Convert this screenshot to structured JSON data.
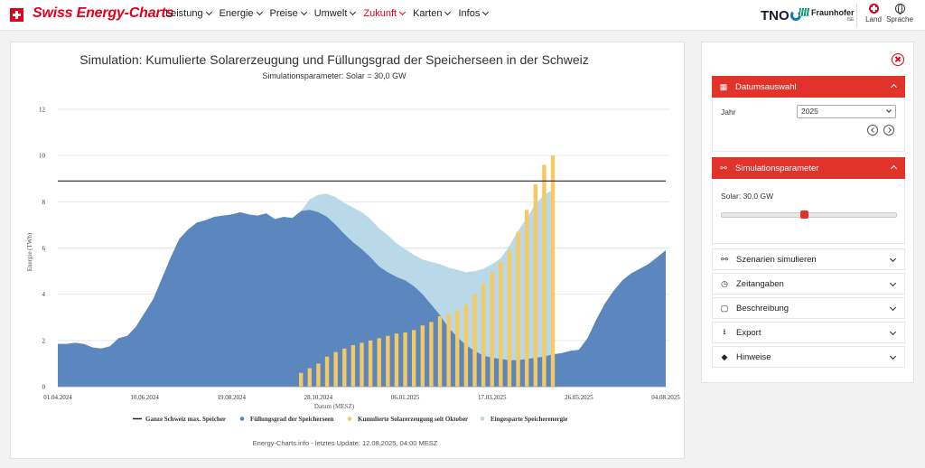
{
  "brand": {
    "name": "Swiss Energy-Charts"
  },
  "nav": {
    "items": [
      {
        "label": "Leistung",
        "active": false
      },
      {
        "label": "Energie",
        "active": false
      },
      {
        "label": "Preise",
        "active": false
      },
      {
        "label": "Umwelt",
        "active": false
      },
      {
        "label": "Zukunft",
        "active": true
      },
      {
        "label": "Karten",
        "active": false
      },
      {
        "label": "Infos",
        "active": false
      }
    ],
    "partner1": "TNO",
    "partner2": "Fraunhofer",
    "partner2_sub": "ISE",
    "land_label": "Land",
    "sprache_label": "Sprache"
  },
  "colors": {
    "accent": "#e2332a",
    "reservoir": "#5b86be",
    "solar": "#f5c963",
    "saved": "#bad9e8",
    "maxline": "#222222"
  },
  "chart_data": {
    "type": "area",
    "title": "Simulation: Kumulierte Solarerzeugung und Füllungsgrad der Speicherseen in der Schweiz",
    "subtitle": "Simulationsparameter: Solar = 30,0 GW",
    "xlabel": "Datum (MESZ)",
    "ylabel": "Energie (TWh)",
    "ylim": [
      0,
      12
    ],
    "yticks": [
      0,
      2,
      4,
      6,
      8,
      10,
      12
    ],
    "xlim": [
      "2024-04-01",
      "2025-08-04"
    ],
    "xticks": [
      "01.04.2024",
      "10.06.2024",
      "19.08.2024",
      "28.10.2024",
      "06.01.2025",
      "17.03.2025",
      "26.05.2025",
      "04.08.2025"
    ],
    "grid": true,
    "legend_position": "bottom",
    "footer": "Energy-Charts.info - letztes Update: 12.08.2025, 04:00 MESZ",
    "series": [
      {
        "name": "Ganze Schweiz max. Speicher",
        "kind": "line",
        "value": 8.9
      },
      {
        "name": "Füllungsgrad der Speicherseen",
        "kind": "area",
        "x": [
          "2024-04-01",
          "2024-04-08",
          "2024-04-15",
          "2024-04-22",
          "2024-04-29",
          "2024-05-06",
          "2024-05-13",
          "2024-05-20",
          "2024-05-27",
          "2024-06-03",
          "2024-06-10",
          "2024-06-17",
          "2024-06-24",
          "2024-07-01",
          "2024-07-08",
          "2024-07-15",
          "2024-07-22",
          "2024-07-29",
          "2024-08-05",
          "2024-08-12",
          "2024-08-19",
          "2024-08-26",
          "2024-09-02",
          "2024-09-09",
          "2024-09-16",
          "2024-09-23",
          "2024-09-30",
          "2024-10-07",
          "2024-10-14",
          "2024-10-21",
          "2024-10-28",
          "2024-11-04",
          "2024-11-11",
          "2024-11-18",
          "2024-11-25",
          "2024-12-02",
          "2024-12-09",
          "2024-12-16",
          "2024-12-23",
          "2024-12-30",
          "2025-01-06",
          "2025-01-13",
          "2025-01-20",
          "2025-01-27",
          "2025-02-03",
          "2025-02-10",
          "2025-02-17",
          "2025-02-24",
          "2025-03-03",
          "2025-03-10",
          "2025-03-17",
          "2025-03-24",
          "2025-03-31",
          "2025-04-07",
          "2025-04-14",
          "2025-04-21",
          "2025-04-28",
          "2025-05-05",
          "2025-05-12",
          "2025-05-19",
          "2025-05-26",
          "2025-06-02",
          "2025-06-09",
          "2025-06-16",
          "2025-06-23",
          "2025-06-30",
          "2025-07-07",
          "2025-07-14",
          "2025-07-21",
          "2025-07-28",
          "2025-08-04"
        ],
        "y": [
          1.85,
          1.85,
          1.9,
          1.85,
          1.7,
          1.65,
          1.75,
          2.1,
          2.2,
          2.6,
          3.2,
          3.8,
          4.7,
          5.6,
          6.4,
          6.8,
          7.1,
          7.2,
          7.35,
          7.4,
          7.45,
          7.55,
          7.45,
          7.4,
          7.5,
          7.25,
          7.35,
          7.3,
          7.6,
          7.65,
          7.55,
          7.35,
          7.0,
          6.6,
          6.25,
          5.95,
          5.6,
          5.2,
          4.95,
          4.75,
          4.6,
          4.35,
          4.0,
          3.55,
          3.1,
          2.55,
          2.15,
          1.8,
          1.55,
          1.35,
          1.25,
          1.2,
          1.15,
          1.15,
          1.2,
          1.25,
          1.3,
          1.4,
          1.45,
          1.55,
          1.6,
          2.1,
          2.9,
          3.6,
          4.15,
          4.6,
          4.9,
          5.1,
          5.3,
          5.6,
          5.9
        ]
      },
      {
        "name": "Kumulierte Solarerzeugung seit Oktober",
        "kind": "bar",
        "x": [
          "2024-10-14",
          "2024-10-21",
          "2024-10-28",
          "2024-11-04",
          "2024-11-11",
          "2024-11-18",
          "2024-11-25",
          "2024-12-02",
          "2024-12-09",
          "2024-12-16",
          "2024-12-23",
          "2024-12-30",
          "2025-01-06",
          "2025-01-13",
          "2025-01-20",
          "2025-01-27",
          "2025-02-03",
          "2025-02-10",
          "2025-02-17",
          "2025-02-24",
          "2025-03-03",
          "2025-03-10",
          "2025-03-17",
          "2025-03-24",
          "2025-03-31",
          "2025-04-07",
          "2025-04-14",
          "2025-04-21",
          "2025-04-28",
          "2025-05-05"
        ],
        "y": [
          0.6,
          0.8,
          1.0,
          1.3,
          1.5,
          1.65,
          1.8,
          1.9,
          2.0,
          2.1,
          2.2,
          2.3,
          2.35,
          2.45,
          2.65,
          2.8,
          3.05,
          3.15,
          3.3,
          3.55,
          4.0,
          4.45,
          4.95,
          5.4,
          5.9,
          6.7,
          7.65,
          8.75,
          9.6,
          10.0
        ]
      },
      {
        "name": "Eingesparte Speicherenergie",
        "kind": "area",
        "x": [
          "2024-10-14",
          "2024-10-21",
          "2024-10-28",
          "2024-11-04",
          "2024-11-11",
          "2024-11-18",
          "2024-11-25",
          "2024-12-02",
          "2024-12-09",
          "2024-12-16",
          "2024-12-23",
          "2024-12-30",
          "2025-01-06",
          "2025-01-13",
          "2025-01-20",
          "2025-01-27",
          "2025-02-03",
          "2025-02-10",
          "2025-02-17",
          "2025-02-24",
          "2025-03-03",
          "2025-03-10",
          "2025-03-17",
          "2025-03-24",
          "2025-03-31",
          "2025-04-07",
          "2025-04-14",
          "2025-04-21",
          "2025-04-28",
          "2025-05-05"
        ],
        "y": [
          7.6,
          8.1,
          8.3,
          8.35,
          8.2,
          7.95,
          7.75,
          7.55,
          7.25,
          6.85,
          6.55,
          6.2,
          5.95,
          5.7,
          5.5,
          5.4,
          5.3,
          5.15,
          5.05,
          4.95,
          5.0,
          5.1,
          5.3,
          5.55,
          6.1,
          6.75,
          7.3,
          7.9,
          8.3,
          8.5
        ]
      }
    ]
  },
  "sidebar": {
    "datum": {
      "title": "Datumsauswahl",
      "jahr_label": "Jahr",
      "jahr_value": "2025"
    },
    "sim": {
      "title": "Simulationsparameter",
      "solar_label": "Solar: 30,0 GW",
      "solar_value_gw": 30.0,
      "solar_fraction": 0.47
    },
    "collapsed": [
      {
        "title": "Szenarien simulieren",
        "icon": "nodes-icon"
      },
      {
        "title": "Zeitangaben",
        "icon": "clock-icon"
      },
      {
        "title": "Beschreibung",
        "icon": "note-icon"
      },
      {
        "title": "Export",
        "icon": "download-icon"
      },
      {
        "title": "Hinweise",
        "icon": "diamond-icon"
      }
    ]
  }
}
